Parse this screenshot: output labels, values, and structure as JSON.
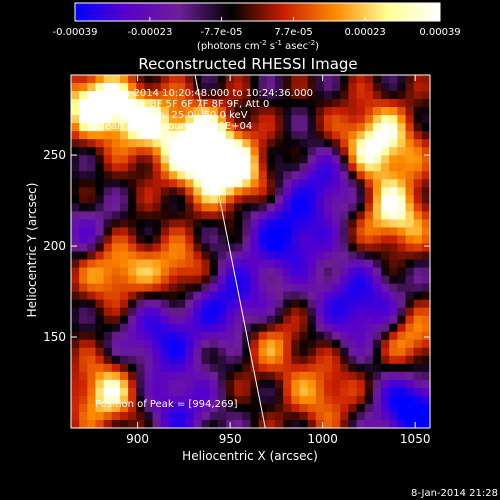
{
  "colorbar": {
    "tick_labels": [
      "-0.00039",
      "-0.00023",
      "-7.7e-05",
      "7.7e-05",
      "0.00023",
      "0.00039"
    ],
    "range": [
      -0.00039,
      0.00039
    ],
    "units_parts": [
      "(photons cm",
      "-2",
      " s",
      "-1",
      " asec",
      "-2",
      ")"
    ],
    "colors": [
      "#0000ff",
      "#5a00c8",
      "#6e1e96",
      "#000000",
      "#c81e00",
      "#ff8c00",
      "#ffff96",
      "#ffffff"
    ]
  },
  "chart_data": {
    "type": "heatmap",
    "title": "Reconstructed RHESSI Image",
    "xlabel": "Heliocentric X (arcsec)",
    "ylabel": "Heliocentric Y (arcsec)",
    "xlim": [
      864,
      1058
    ],
    "ylim": [
      100,
      294
    ],
    "xticks": [
      900,
      950,
      1000,
      1050
    ],
    "yticks": [
      150,
      200,
      250
    ],
    "xtick_labels": [
      "900",
      "950",
      "1000",
      "1050"
    ],
    "ytick_labels": [
      "150",
      "200",
      "250"
    ],
    "annotations": [
      "8-Jan-2014 10:20:48.000 to 10:24:36.000",
      "Detectors: 3F 5F 6F 7F 8F 9F, Att 0",
      "Energy Range: 25.0 - 50.0 keV",
      "Clean    Total counts: 1.39E+04"
    ],
    "peak_label": "Position of Peak = [994,269]",
    "peak": [
      994,
      269
    ],
    "limb_line": [
      [
        931,
        294
      ],
      [
        969,
        100
      ]
    ]
  },
  "footer": {
    "timestamp": "8-Jan-2014 21:28"
  }
}
